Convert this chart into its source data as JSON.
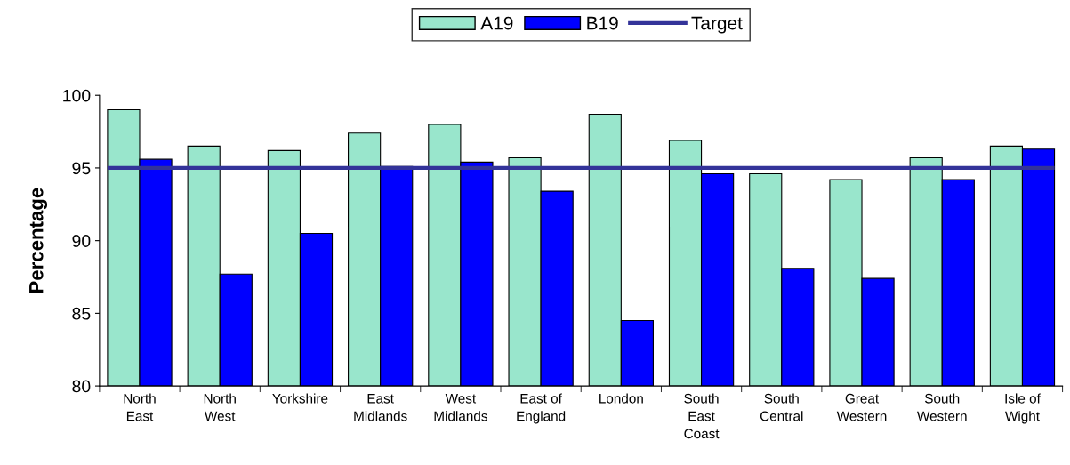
{
  "chart_data": {
    "type": "bar",
    "ylabel": "Percentage",
    "categories": [
      "North\nEast",
      "North\nWest",
      "Yorkshire",
      "East\nMidlands",
      "West\nMidlands",
      "East of\nEngland",
      "London",
      "South\nEast\nCoast",
      "South\nCentral",
      "Great\nWestern",
      "South\nWestern",
      "Isle of\nWight"
    ],
    "series": [
      {
        "name": "A19",
        "color": "#99e6cc",
        "values": [
          99.0,
          96.5,
          96.2,
          97.4,
          98.0,
          95.7,
          98.7,
          96.9,
          94.6,
          94.2,
          95.7,
          96.5
        ]
      },
      {
        "name": "B19",
        "color": "#0000ff",
        "values": [
          95.6,
          87.7,
          90.5,
          95.1,
          95.4,
          93.4,
          84.5,
          94.6,
          88.1,
          87.4,
          94.2,
          96.3
        ]
      }
    ],
    "ref_lines": [
      {
        "axis": "y",
        "value": 95,
        "label": "Target",
        "color": "#333399",
        "line_style": "solid"
      }
    ],
    "ylim": [
      80,
      100
    ],
    "yticks": [
      80,
      85,
      90,
      95,
      100
    ],
    "grid": false,
    "legend": "top"
  }
}
